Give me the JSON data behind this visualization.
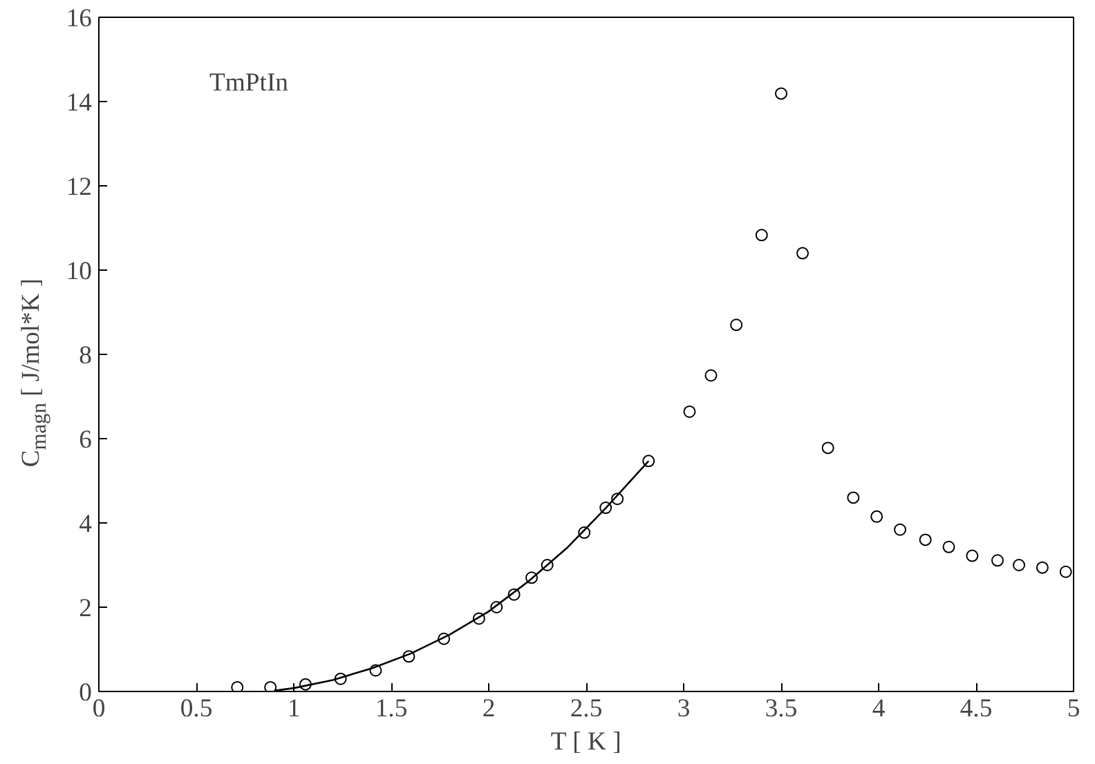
{
  "chart_data": {
    "type": "scatter",
    "xlabel": "T [ K ]",
    "ylabel": "C$_{magn}$ [ J/mol*K ]",
    "annotations": [
      "TmPtIn"
    ],
    "xlim": [
      0,
      5
    ],
    "ylim": [
      0,
      16
    ],
    "xticks": [
      0,
      0.5,
      1,
      1.5,
      2,
      2.5,
      3,
      3.5,
      4,
      4.5,
      5
    ],
    "yticks": [
      0,
      2,
      4,
      6,
      8,
      10,
      12,
      14,
      16
    ],
    "grid": false,
    "series": [
      {
        "marker": "circle",
        "color": "#000000",
        "x": [
          0.71,
          0.88,
          1.06,
          1.24,
          1.42,
          1.59,
          1.77,
          1.95,
          2.04,
          2.13,
          2.22,
          2.3,
          2.49,
          2.6,
          2.66,
          2.82,
          3.03,
          3.14,
          3.27,
          3.4,
          3.5,
          3.61,
          3.74,
          3.87,
          3.99,
          4.11,
          4.24,
          4.36,
          4.48,
          4.61,
          4.72,
          4.84,
          4.96
        ],
        "values": [
          0.1,
          0.1,
          0.17,
          0.3,
          0.5,
          0.83,
          1.25,
          1.73,
          2.0,
          2.3,
          2.7,
          3.0,
          3.77,
          4.36,
          4.57,
          5.47,
          6.64,
          7.5,
          8.7,
          10.83,
          14.19,
          10.4,
          5.78,
          4.6,
          4.15,
          3.84,
          3.6,
          3.43,
          3.22,
          3.11,
          3.0,
          2.94,
          2.84
        ]
      },
      {
        "type": "line",
        "color": "#000000",
        "x": [
          0.9,
          1.0,
          1.2,
          1.4,
          1.6,
          1.8,
          2.0,
          2.2,
          2.4,
          2.6,
          2.82
        ],
        "values": [
          0.02,
          0.08,
          0.27,
          0.55,
          0.9,
          1.35,
          1.9,
          2.6,
          3.4,
          4.35,
          5.47
        ]
      }
    ]
  }
}
